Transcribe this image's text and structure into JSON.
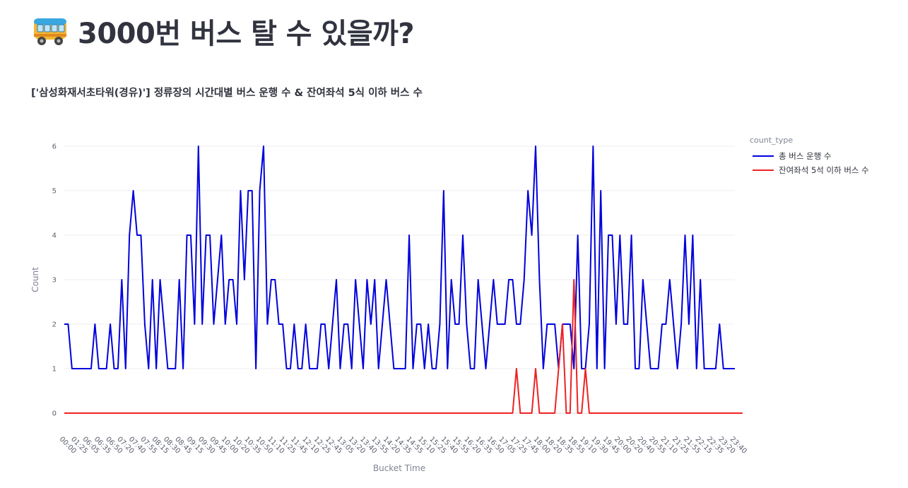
{
  "page": {
    "title": "3000번 버스 탈 수 있을까?",
    "title_icon": "bus-icon"
  },
  "chart_data": {
    "type": "line",
    "title": "['삼성화재서초타워(경유)'] 정류장의 시간대별 버스 운행 수 & 잔여좌석 5식 이하 버스 수",
    "xlabel": "Bucket Time",
    "ylabel": "Count",
    "ylim": [
      0,
      6
    ],
    "y_ticks": [
      0,
      1,
      2,
      3,
      4,
      5,
      6
    ],
    "grid": true,
    "legend_title": "count_type",
    "legend_position": "top-right",
    "x_ticks": [
      "00:00",
      "01:25",
      "06:05",
      "06:35",
      "06:50",
      "07:20",
      "07:40",
      "07:55",
      "08:15",
      "08:30",
      "08:45",
      "09:15",
      "09:30",
      "09:45",
      "10:00",
      "10:20",
      "10:35",
      "10:50",
      "11:10",
      "11:25",
      "11:45",
      "12:10",
      "12:25",
      "12:45",
      "13:05",
      "13:20",
      "13:40",
      "13:55",
      "14:20",
      "14:35",
      "14:55",
      "15:10",
      "15:25",
      "15:40",
      "15:55",
      "16:20",
      "16:35",
      "16:50",
      "17:05",
      "17:25",
      "17:45",
      "18:00",
      "18:20",
      "18:35",
      "18:55",
      "19:10",
      "19:30",
      "19:45",
      "20:00",
      "20:20",
      "20:40",
      "20:55",
      "21:10",
      "21:25",
      "21:55",
      "22:15",
      "22:35",
      "23:20",
      "23:40"
    ],
    "series": [
      {
        "name": "총 버스 운행 수",
        "color": "#0000dd",
        "values": [
          2,
          2,
          1,
          1,
          1,
          1,
          1,
          1,
          2,
          1,
          1,
          1,
          2,
          1,
          1,
          3,
          1,
          4,
          5,
          4,
          4,
          2,
          1,
          3,
          1,
          3,
          2,
          1,
          1,
          1,
          3,
          1,
          4,
          4,
          2,
          6,
          2,
          4,
          4,
          2,
          3,
          4,
          2,
          3,
          3,
          2,
          5,
          3,
          5,
          5,
          1,
          5,
          6,
          2,
          3,
          3,
          2,
          2,
          1,
          1,
          2,
          1,
          1,
          2,
          1,
          1,
          1,
          2,
          2,
          1,
          2,
          3,
          1,
          2,
          2,
          1,
          3,
          2,
          1,
          3,
          2,
          3,
          1,
          2,
          3,
          2,
          1,
          1,
          1,
          1,
          4,
          1,
          2,
          2,
          1,
          2,
          1,
          1,
          2,
          5,
          1,
          3,
          2,
          2,
          4,
          2,
          1,
          1,
          3,
          2,
          1,
          2,
          3,
          2,
          2,
          2,
          3,
          3,
          2,
          2,
          3,
          5,
          4,
          6,
          3,
          1,
          2,
          2,
          2,
          1,
          2,
          2,
          2,
          1,
          4,
          1,
          1,
          2,
          6,
          1,
          5,
          1,
          4,
          4,
          2,
          4,
          2,
          2,
          4,
          1,
          1,
          3,
          2,
          1,
          1,
          1,
          2,
          2,
          3,
          2,
          1,
          2,
          4,
          2,
          4,
          1,
          3,
          1,
          1,
          1,
          1,
          2,
          1,
          1,
          1,
          1
        ]
      },
      {
        "name": "잔여좌석 5석 이하 버스 수",
        "color": "#ee2222",
        "values": [
          0,
          0,
          0,
          0,
          0,
          0,
          0,
          0,
          0,
          0,
          0,
          0,
          0,
          0,
          0,
          0,
          0,
          0,
          0,
          0,
          0,
          0,
          0,
          0,
          0,
          0,
          0,
          0,
          0,
          0,
          0,
          0,
          0,
          0,
          0,
          0,
          0,
          0,
          0,
          0,
          0,
          0,
          0,
          0,
          0,
          0,
          0,
          0,
          0,
          0,
          0,
          0,
          0,
          0,
          0,
          0,
          0,
          0,
          0,
          0,
          0,
          0,
          0,
          0,
          0,
          0,
          0,
          0,
          0,
          0,
          0,
          0,
          0,
          0,
          0,
          0,
          0,
          0,
          0,
          0,
          0,
          0,
          0,
          0,
          0,
          0,
          0,
          0,
          0,
          0,
          0,
          0,
          0,
          0,
          0,
          0,
          0,
          0,
          0,
          0,
          0,
          0,
          0,
          0,
          0,
          0,
          0,
          0,
          0,
          0,
          0,
          0,
          0,
          0,
          0,
          0,
          0,
          0,
          1,
          0,
          0,
          0,
          0,
          1,
          0,
          0,
          0,
          0,
          0,
          1,
          2,
          0,
          0,
          3,
          0,
          0,
          1,
          0,
          0,
          0,
          0,
          0,
          0,
          0,
          0,
          0,
          0,
          0,
          0,
          0,
          0,
          0,
          0,
          0,
          0,
          0,
          0,
          0,
          0,
          0,
          0,
          0,
          0,
          0,
          0,
          0,
          0,
          0,
          0,
          0,
          0,
          0,
          0,
          0,
          0,
          0,
          0,
          0
        ]
      }
    ]
  }
}
